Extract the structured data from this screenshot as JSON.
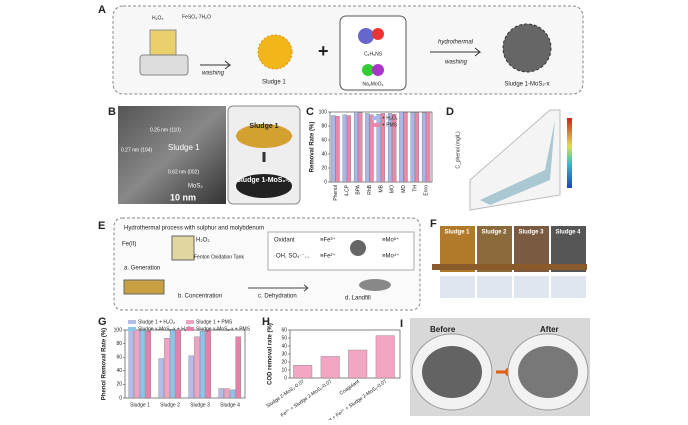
{
  "panel_a": {
    "label": "A",
    "h2o2": "H₂O₂",
    "feso4": "FeSO₄·7H₂O",
    "washing_1": "washing",
    "sludge": "Sludge 1",
    "plus": "+",
    "thioacetamide": "C₂H₅NS",
    "molybdate": "Na₂MoO₄",
    "hydrothermal": "hydrothermal",
    "washing_2": "washing",
    "product": "Sludge 1-MoS₂-x"
  },
  "panel_b": {
    "label": "B",
    "d_110": "0.25 nm (110)",
    "d_104": "0.27 nm (104)",
    "sludge_tem": "Sludge 1",
    "d_002": "0.62 nm (002)",
    "mos2": "MoS₂",
    "scale": "10 nm",
    "photo_top": "Sludge 1",
    "photo_bottom": "Sludge 1-MoS₂-x"
  },
  "panel_d": {
    "label": "D",
    "z_label": "C_phenol (mg/L)"
  },
  "panel_e": {
    "label": "E",
    "header": "Hydrothermal process with sulphur and molybdenum",
    "fe": "Fe(II)",
    "h2o2": "H₂O₂",
    "tank": "Fenton Oxidation Tank",
    "step_a": "a. Generation",
    "step_b": "b. Concentration",
    "step_c": "c. Dehydration",
    "step_d": "d. Landfill",
    "oxidant": "Oxidant",
    "radicals": "·OH, SO₄·⁻...",
    "fe3": "≡Fe³⁺",
    "fe2": "≡Fe²⁺",
    "mo6": "≡Mo⁶⁺",
    "mo4": "≡Mo⁴⁺"
  },
  "panel_f": {
    "label": "F",
    "samples": [
      "Sludge 1",
      "Sludge 2",
      "Sludge 3",
      "Sludge 4"
    ]
  },
  "panel_i": {
    "label": "I",
    "before": "Before",
    "after": "After"
  },
  "chart_data": [
    {
      "type": "bar",
      "panel": "C",
      "y_label": "Removal Rate (%)",
      "categories": [
        "Phenol",
        "4-CP",
        "BPA",
        "RhB",
        "MB",
        "MO",
        "MD",
        "TH",
        "Enro"
      ],
      "series": [
        {
          "name": "+ H₂O₂",
          "color": "#a9b6ea",
          "values": [
            95,
            96,
            100,
            98,
            97,
            98,
            100,
            99,
            99
          ]
        },
        {
          "name": "+ PMS",
          "color": "#ee86ab",
          "values": [
            94,
            95,
            99,
            96,
            98,
            97,
            99,
            99,
            100
          ]
        }
      ],
      "ylim": [
        0,
        100
      ],
      "yticks": [
        0,
        20,
        40,
        60,
        80,
        100
      ]
    },
    {
      "type": "bar",
      "panel": "G",
      "y_label": "Phenol Removal Rate (%)",
      "categories": [
        "Sludge 1",
        "Sludge 2",
        "Sludge 3",
        "Sludge 4"
      ],
      "series": [
        {
          "name": "Sludge 1 + H₂O₂",
          "color": "#b3bbe9",
          "values": [
            100,
            58,
            62,
            14
          ]
        },
        {
          "name": "Sludge 1 + PMS",
          "color": "#eea3c2",
          "values": [
            100,
            88,
            90,
            14
          ]
        },
        {
          "name": "Sludge x-MoS₂-x + H₂O₂",
          "color": "#8fc3ea",
          "values": [
            100,
            100,
            98,
            12
          ]
        },
        {
          "name": "Sludge x-MoS₂-x + PMS",
          "color": "#e680ab",
          "values": [
            98,
            100,
            100,
            90
          ]
        }
      ],
      "ylim": [
        0,
        100
      ],
      "yticks": [
        0,
        20,
        40,
        60,
        80,
        100
      ]
    },
    {
      "type": "bar",
      "panel": "H",
      "y_label": "COD removal rate (%)",
      "categories": [
        "Sludge 2-MoS₂-0.07",
        "Fe²⁺ + Sludge 2-MoS₂-0.07",
        "Coagulant",
        "Coagulant + Fe²⁺ + Sludge 2-MoS₂-0.07"
      ],
      "series": [
        {
          "name": "COD",
          "color": "#f3a6c4",
          "values": [
            16,
            27,
            35,
            53
          ]
        }
      ],
      "ylim": [
        0,
        60
      ],
      "yticks": [
        0,
        10,
        20,
        30,
        40,
        50,
        60
      ]
    }
  ]
}
